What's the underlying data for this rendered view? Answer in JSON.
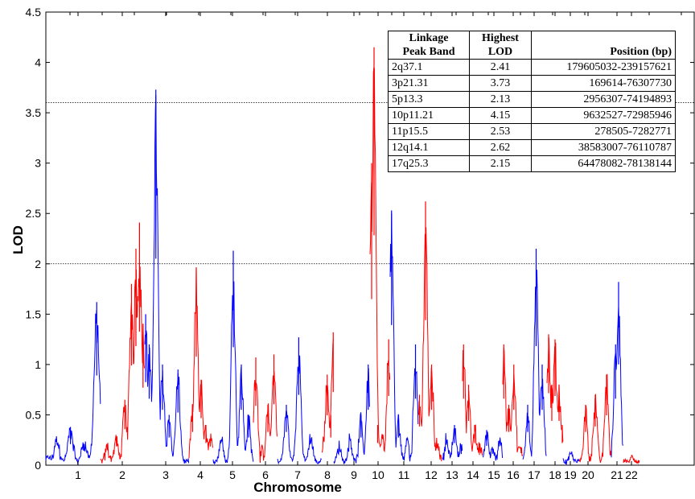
{
  "chart_data": {
    "type": "line",
    "xlabel": "Chromosome",
    "ylabel": "LOD",
    "ylim": [
      0,
      4.5
    ],
    "y_ticks": [
      "0",
      "0.5",
      "1",
      "1.5",
      "2",
      "2.5",
      "3",
      "3.5",
      "4",
      "4.5"
    ],
    "x_ticks": [
      "1",
      "2",
      "3",
      "4",
      "5",
      "6",
      "7",
      "8",
      "9",
      "10",
      "11",
      "12",
      "13",
      "14",
      "15",
      "16",
      "17",
      "18",
      "19",
      "20",
      "21",
      "22"
    ],
    "thresholds": [
      3.6,
      2.0
    ],
    "colors": {
      "odd_chromosome": "#0000ff",
      "even_chromosome": "#ff0000",
      "threshold": "#000000"
    },
    "peaks": [
      {
        "chr": 1,
        "pos": 0.05,
        "lod": 0.06
      },
      {
        "chr": 1,
        "pos": 0.2,
        "lod": 0.28
      },
      {
        "chr": 1,
        "pos": 0.45,
        "lod": 0.38
      },
      {
        "chr": 1,
        "pos": 0.7,
        "lod": 0.25
      },
      {
        "chr": 1,
        "pos": 0.93,
        "lod": 1.62
      },
      {
        "chr": 2,
        "pos": 0.15,
        "lod": 0.2
      },
      {
        "chr": 2,
        "pos": 0.35,
        "lod": 0.28
      },
      {
        "chr": 2,
        "pos": 0.55,
        "lod": 0.65
      },
      {
        "chr": 2,
        "pos": 0.7,
        "lod": 1.8
      },
      {
        "chr": 2,
        "pos": 0.8,
        "lod": 2.15
      },
      {
        "chr": 2,
        "pos": 0.88,
        "lod": 2.41
      },
      {
        "chr": 2,
        "pos": 0.96,
        "lod": 1.4
      },
      {
        "chr": 3,
        "pos": 0.02,
        "lod": 1.5
      },
      {
        "chr": 3,
        "pos": 0.1,
        "lod": 1.2
      },
      {
        "chr": 3,
        "pos": 0.25,
        "lod": 3.73
      },
      {
        "chr": 3,
        "pos": 0.4,
        "lod": 1.0
      },
      {
        "chr": 3,
        "pos": 0.55,
        "lod": 0.5
      },
      {
        "chr": 3,
        "pos": 0.75,
        "lod": 0.95
      },
      {
        "chr": 4,
        "pos": 0.15,
        "lod": 0.6
      },
      {
        "chr": 4,
        "pos": 0.3,
        "lod": 1.96
      },
      {
        "chr": 4,
        "pos": 0.5,
        "lod": 0.85
      },
      {
        "chr": 4,
        "pos": 0.7,
        "lod": 0.4
      },
      {
        "chr": 4,
        "pos": 0.88,
        "lod": 0.3
      },
      {
        "chr": 5,
        "pos": 0.2,
        "lod": 0.3
      },
      {
        "chr": 5,
        "pos": 0.5,
        "lod": 2.13
      },
      {
        "chr": 5,
        "pos": 0.7,
        "lod": 1.0
      },
      {
        "chr": 5,
        "pos": 0.88,
        "lod": 0.5
      },
      {
        "chr": 6,
        "pos": 0.1,
        "lod": 1.07
      },
      {
        "chr": 6,
        "pos": 0.35,
        "lod": 0.15
      },
      {
        "chr": 6,
        "pos": 0.6,
        "lod": 0.6
      },
      {
        "chr": 6,
        "pos": 0.85,
        "lod": 1.1
      },
      {
        "chr": 7,
        "pos": 0.2,
        "lod": 0.6
      },
      {
        "chr": 7,
        "pos": 0.48,
        "lod": 1.27
      },
      {
        "chr": 7,
        "pos": 0.75,
        "lod": 0.3
      },
      {
        "chr": 8,
        "pos": 0.15,
        "lod": 0.3
      },
      {
        "chr": 8,
        "pos": 0.45,
        "lod": 0.9
      },
      {
        "chr": 8,
        "pos": 0.75,
        "lod": 0.5
      },
      {
        "chr": 8,
        "pos": 0.95,
        "lod": 1.32
      },
      {
        "chr": 9,
        "pos": 0.15,
        "lod": 0.2
      },
      {
        "chr": 9,
        "pos": 0.45,
        "lod": 0.3
      },
      {
        "chr": 9,
        "pos": 0.75,
        "lod": 0.5
      },
      {
        "chr": 9,
        "pos": 0.95,
        "lod": 1.0
      },
      {
        "chr": 10,
        "pos": 0.08,
        "lod": 3.0
      },
      {
        "chr": 10,
        "pos": 0.2,
        "lod": 4.15
      },
      {
        "chr": 10,
        "pos": 0.38,
        "lod": 0.4
      },
      {
        "chr": 10,
        "pos": 0.62,
        "lod": 0.3
      },
      {
        "chr": 10,
        "pos": 0.93,
        "lod": 1.25
      },
      {
        "chr": 11,
        "pos": 0.05,
        "lod": 2.53
      },
      {
        "chr": 11,
        "pos": 0.3,
        "lod": 0.5
      },
      {
        "chr": 11,
        "pos": 0.6,
        "lod": 0.3
      },
      {
        "chr": 11,
        "pos": 0.9,
        "lod": 1.2
      },
      {
        "chr": 12,
        "pos": 0.05,
        "lod": 0.7
      },
      {
        "chr": 12,
        "pos": 0.3,
        "lod": 2.62
      },
      {
        "chr": 12,
        "pos": 0.55,
        "lod": 1.0
      },
      {
        "chr": 12,
        "pos": 0.8,
        "lod": 0.25
      },
      {
        "chr": 13,
        "pos": 0.2,
        "lod": 0.3
      },
      {
        "chr": 13,
        "pos": 0.6,
        "lod": 0.4
      },
      {
        "chr": 13,
        "pos": 0.9,
        "lod": 0.2
      },
      {
        "chr": 14,
        "pos": 0.05,
        "lod": 1.2
      },
      {
        "chr": 14,
        "pos": 0.3,
        "lod": 0.8
      },
      {
        "chr": 14,
        "pos": 0.6,
        "lod": 0.4
      },
      {
        "chr": 14,
        "pos": 0.85,
        "lod": 0.2
      },
      {
        "chr": 15,
        "pos": 0.2,
        "lod": 0.35
      },
      {
        "chr": 15,
        "pos": 0.5,
        "lod": 0.15
      },
      {
        "chr": 15,
        "pos": 0.85,
        "lod": 0.3
      },
      {
        "chr": 16,
        "pos": 0.05,
        "lod": 1.2
      },
      {
        "chr": 16,
        "pos": 0.3,
        "lod": 0.6
      },
      {
        "chr": 16,
        "pos": 0.55,
        "lod": 1.0
      },
      {
        "chr": 16,
        "pos": 0.85,
        "lod": 0.2
      },
      {
        "chr": 17,
        "pos": 0.2,
        "lod": 0.6
      },
      {
        "chr": 17,
        "pos": 0.55,
        "lod": 2.15
      },
      {
        "chr": 17,
        "pos": 0.8,
        "lod": 1.0
      },
      {
        "chr": 18,
        "pos": 0.1,
        "lod": 1.3
      },
      {
        "chr": 18,
        "pos": 0.3,
        "lod": 0.8
      },
      {
        "chr": 18,
        "pos": 0.5,
        "lod": 1.25
      },
      {
        "chr": 18,
        "pos": 0.75,
        "lod": 0.8
      },
      {
        "chr": 18,
        "pos": 0.95,
        "lod": 0.4
      },
      {
        "chr": 19,
        "pos": 0.5,
        "lod": 0.1
      },
      {
        "chr": 20,
        "pos": 0.2,
        "lod": 0.6
      },
      {
        "chr": 20,
        "pos": 0.5,
        "lod": 0.7
      },
      {
        "chr": 20,
        "pos": 0.85,
        "lod": 0.9
      },
      {
        "chr": 21,
        "pos": 0.35,
        "lod": 1.2
      },
      {
        "chr": 21,
        "pos": 0.6,
        "lod": 1.82
      },
      {
        "chr": 21,
        "pos": 0.85,
        "lod": 0.1
      },
      {
        "chr": 22,
        "pos": 0.5,
        "lod": 0.06
      }
    ]
  },
  "table": {
    "headers": [
      "Linkage\nPeak Band",
      "Highest\nLOD",
      "Position (bp)"
    ],
    "rows": [
      {
        "band": "2q37.1",
        "lod": "2.41",
        "position": "179605032-239157621"
      },
      {
        "band": "3p21.31",
        "lod": "3.73",
        "position": "169614-76307730"
      },
      {
        "band": "5p13.3",
        "lod": "2.13",
        "position": "2956307-74194893"
      },
      {
        "band": "10p11.21",
        "lod": "4.15",
        "position": "9632527-72985946"
      },
      {
        "band": "11p15.5",
        "lod": "2.53",
        "position": "278505-7282771"
      },
      {
        "band": "12q14.1",
        "lod": "2.62",
        "position": "38583007-76110787"
      },
      {
        "band": "17q25.3",
        "lod": "2.15",
        "position": "64478082-78138144"
      }
    ]
  }
}
